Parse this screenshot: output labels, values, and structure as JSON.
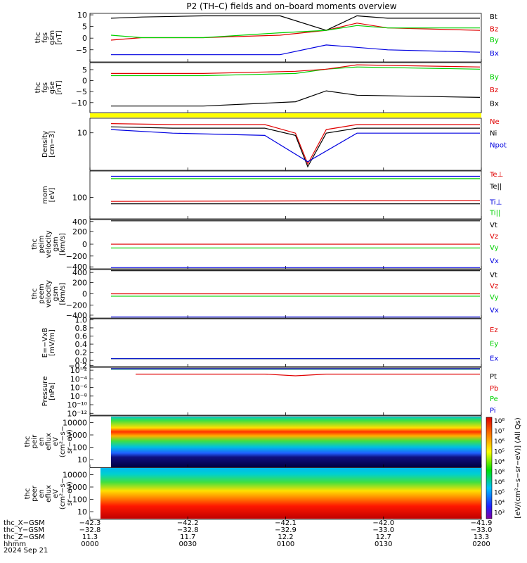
{
  "title": "P2 (TH–C) fields and on–board moments overview",
  "colors": {
    "black": "#000000",
    "red": "#e00000",
    "green": "#00d000",
    "blue": "#0000e0",
    "yellow": "#ffff00"
  },
  "chart_data": [
    {
      "type": "line",
      "panel": "fgs_gsm",
      "ylabel": [
        "thc",
        "fgs",
        "gsm",
        "[nT]"
      ],
      "ylim": [
        -10,
        10
      ],
      "yticks": [
        "10",
        "5",
        "0",
        "−5"
      ],
      "series": [
        {
          "name": "Bt",
          "color": "#000000",
          "x": [
            0,
            10,
            30,
            55,
            70,
            80,
            90,
            120
          ],
          "values": [
            8,
            8.5,
            9,
            9,
            3,
            9,
            8,
            8
          ]
        },
        {
          "name": "Bz",
          "color": "#e00000",
          "x": [
            0,
            10,
            30,
            55,
            70,
            80,
            90,
            120
          ],
          "values": [
            -1,
            0,
            0,
            1,
            3,
            6,
            4,
            3
          ]
        },
        {
          "name": "By",
          "color": "#00d000",
          "x": [
            0,
            10,
            30,
            55,
            70,
            80,
            90,
            120
          ],
          "values": [
            1,
            0,
            0,
            2,
            3,
            5,
            4,
            4
          ]
        },
        {
          "name": "Bx",
          "color": "#0000e0",
          "x": [
            0,
            10,
            30,
            55,
            70,
            80,
            90,
            120
          ],
          "values": [
            -7,
            -7,
            -7,
            -7,
            -3,
            -4,
            -5,
            -6
          ]
        }
      ]
    },
    {
      "type": "line",
      "panel": "fgs_gse",
      "ylabel": [
        "thc",
        "fgs",
        "gse",
        "[nT]"
      ],
      "ylim": [
        -15,
        8
      ],
      "yticks": [
        "5",
        "0",
        "−5",
        "−10"
      ],
      "series": [
        {
          "name": "By",
          "color": "#00d000",
          "x": [
            0,
            30,
            60,
            70,
            80,
            120
          ],
          "values": [
            2,
            2,
            3,
            5,
            6,
            5
          ]
        },
        {
          "name": "Bz",
          "color": "#e00000",
          "x": [
            0,
            30,
            60,
            70,
            80,
            120
          ],
          "values": [
            3,
            3,
            4,
            5,
            7,
            6
          ]
        },
        {
          "name": "Bx",
          "color": "#000000",
          "x": [
            0,
            30,
            60,
            70,
            80,
            120
          ],
          "values": [
            -12,
            -12,
            -10,
            -5,
            -7,
            -8
          ]
        }
      ]
    },
    {
      "type": "line",
      "panel": "density",
      "ylabel": [
        "Density",
        "[cm−3]"
      ],
      "yticks": [
        "10"
      ],
      "series": [
        {
          "name": "Ne",
          "color": "#e00000",
          "x": [
            0,
            20,
            50,
            60,
            64,
            70,
            80,
            120
          ],
          "values": [
            13,
            12,
            12,
            6,
            0.5,
            8,
            12,
            12
          ]
        },
        {
          "name": "Ni",
          "color": "#000000",
          "x": [
            0,
            20,
            50,
            60,
            64,
            70,
            80,
            120
          ],
          "values": [
            10,
            9,
            9,
            5,
            0.4,
            6,
            9,
            9
          ]
        },
        {
          "name": "Npot",
          "color": "#0000e0",
          "x": [
            0,
            20,
            50,
            64,
            80,
            120
          ],
          "values": [
            8,
            6,
            5,
            0.6,
            6,
            6
          ]
        }
      ]
    },
    {
      "type": "line",
      "panel": "temperature",
      "ylabel": [
        "mom",
        "[eV]"
      ],
      "yticks": [
        "100"
      ],
      "series": [
        {
          "name": "Te⊥",
          "color": "#e00000",
          "x": [
            0,
            120
          ],
          "values": [
            40,
            45
          ]
        },
        {
          "name": "Te||",
          "color": "#000000",
          "x": [
            0,
            120
          ],
          "values": [
            30,
            30
          ]
        },
        {
          "name": "Ti⊥",
          "color": "#0000e0",
          "x": [
            0,
            120
          ],
          "values": [
            800,
            800
          ]
        },
        {
          "name": "Ti||",
          "color": "#00d000",
          "x": [
            0,
            120
          ],
          "values": [
            600,
            600
          ]
        }
      ]
    },
    {
      "type": "line",
      "panel": "peim_velocity",
      "ylabel": [
        "thc",
        "peim",
        "velocity",
        "gsm",
        "[km/s]"
      ],
      "ylim": [
        -400,
        400
      ],
      "yticks": [
        "400",
        "200",
        "0",
        "−200",
        "−400"
      ],
      "series": [
        {
          "name": "Vt",
          "color": "#000000",
          "x": [
            0,
            120
          ],
          "values": [
            380,
            380
          ]
        },
        {
          "name": "Vz",
          "color": "#e00000",
          "x": [
            0,
            120
          ],
          "values": [
            0,
            0
          ]
        },
        {
          "name": "Vy",
          "color": "#00d000",
          "x": [
            0,
            120
          ],
          "values": [
            -60,
            -60
          ]
        },
        {
          "name": "Vx",
          "color": "#0000e0",
          "x": [
            0,
            120
          ],
          "values": [
            -380,
            -380
          ]
        }
      ]
    },
    {
      "type": "line",
      "panel": "peem_velocity",
      "ylabel": [
        "thc",
        "peem",
        "velocity",
        "gsm",
        "[km/s]"
      ],
      "ylim": [
        -400,
        400
      ],
      "yticks": [
        "400",
        "200",
        "0",
        "−200",
        "−400"
      ],
      "series": [
        {
          "name": "Vt",
          "color": "#000000",
          "x": [
            0,
            120
          ],
          "values": [
            380,
            380
          ]
        },
        {
          "name": "Vz",
          "color": "#e00000",
          "x": [
            0,
            120
          ],
          "values": [
            0,
            0
          ]
        },
        {
          "name": "Vy",
          "color": "#00d000",
          "x": [
            0,
            120
          ],
          "values": [
            -40,
            -40
          ]
        },
        {
          "name": "Vx",
          "color": "#0000e0",
          "x": [
            0,
            120
          ],
          "values": [
            -380,
            -380
          ]
        }
      ]
    },
    {
      "type": "line",
      "panel": "efield",
      "ylabel": [
        "E=−VxB",
        "[mV/m]"
      ],
      "ylim": [
        -0.2,
        1.0
      ],
      "yticks": [
        "1.0",
        "0.8",
        "0.6",
        "0.4",
        "0.2",
        "0.0",
        "−0.2"
      ],
      "series": [
        {
          "name": "Ez",
          "color": "#e00000",
          "x": [
            0,
            120
          ],
          "values": [
            0,
            0
          ]
        },
        {
          "name": "Ey",
          "color": "#00d000",
          "x": [
            0,
            120
          ],
          "values": [
            0,
            0
          ]
        },
        {
          "name": "Ex",
          "color": "#0000e0",
          "x": [
            0,
            120
          ],
          "values": [
            0,
            0
          ]
        }
      ]
    },
    {
      "type": "line",
      "panel": "pressure",
      "ylabel": [
        "Pressure",
        "[nPa]"
      ],
      "yticks": [
        "10⁻²",
        "10⁻⁴",
        "10⁻⁶",
        "10⁻⁸",
        "10⁻¹⁰",
        "10⁻¹²"
      ],
      "series": [
        {
          "name": "Pt",
          "color": "#000000",
          "x": [
            0,
            120
          ],
          "values": [
            0.01,
            0.01
          ]
        },
        {
          "name": "Pb",
          "color": "#e00000",
          "x": [
            8,
            50,
            60,
            70,
            120
          ],
          "values": [
            0.0005,
            0.0005,
            0.0002,
            0.0005,
            0.0005
          ]
        },
        {
          "name": "Pe",
          "color": "#00d000",
          "x": [
            0,
            120
          ],
          "values": [
            0.007,
            0.007
          ]
        },
        {
          "name": "Pi",
          "color": "#0000e0",
          "x": [
            0,
            120
          ],
          "values": [
            0.009,
            0.009
          ]
        }
      ]
    },
    {
      "type": "heatmap",
      "panel": "peir_spec",
      "ylabel": [
        "thc",
        "peir",
        "en",
        "eflux",
        "eV",
        "(cm²−s−",
        "sr−eV)"
      ],
      "yticks": [
        "10000",
        "1000",
        "100",
        "10"
      ]
    },
    {
      "type": "heatmap",
      "panel": "peer_spec",
      "ylabel": [
        "thc",
        "peer",
        "en",
        "eflux",
        "eV",
        "(cm²−s−",
        "sr−eV)"
      ],
      "yticks": [
        "10000",
        "1000",
        "100",
        "10"
      ]
    }
  ],
  "colorbar": {
    "ticks": [
      "10⁸",
      "10⁷",
      "10⁶",
      "10⁵",
      "10⁴",
      "10⁸",
      "10⁶",
      "10⁵",
      "10⁴",
      "10³"
    ],
    "label": "[eV/(cm²−s−sr−eV)] (All Qs)"
  },
  "xaxis": {
    "rows": [
      {
        "label": "thc_X−GSM",
        "values": [
          "−42.3",
          "−42.2",
          "−42.1",
          "−42.0",
          "−41.9"
        ]
      },
      {
        "label": "thc_Y−GSM",
        "values": [
          "−32.8",
          "−32.8",
          "−32.9",
          "−33.0",
          "−33.0"
        ]
      },
      {
        "label": "thc_Z−GSM",
        "values": [
          "11.3",
          "11.7",
          "12.2",
          "12.7",
          "13.3"
        ]
      },
      {
        "label": "hhmm",
        "values": [
          "0000",
          "0030",
          "0100",
          "0130",
          "0200"
        ]
      }
    ],
    "date": "2024 Sep 21"
  }
}
